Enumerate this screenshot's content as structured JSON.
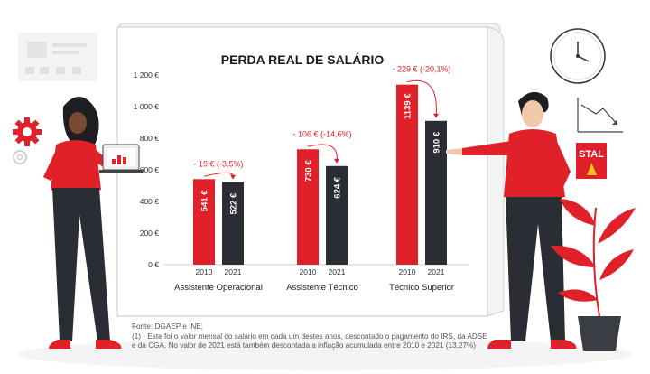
{
  "chart_data": {
    "type": "bar",
    "title": "PERDA REAL DE SALÁRIO",
    "yticks": [
      "0 €",
      "200 €",
      "400 €",
      "600 €",
      "800 €",
      "1 000 €",
      "1 200 €"
    ],
    "ylim": [
      0,
      1200
    ],
    "groups": [
      {
        "category": "Assistente Operacional",
        "years": [
          "2010",
          "2021"
        ],
        "values": [
          541,
          522
        ],
        "labels": [
          "541 €",
          "522 €"
        ],
        "delta": "- 19 € (-3,5%)"
      },
      {
        "category": "Assistente Técnico",
        "years": [
          "2010",
          "2021"
        ],
        "values": [
          730,
          624
        ],
        "labels": [
          "730 €",
          "624 €"
        ],
        "delta": "- 106 € (-14,6%)"
      },
      {
        "category": "Técnico Superior",
        "years": [
          "2010",
          "2021"
        ],
        "values": [
          1139,
          910
        ],
        "labels": [
          "1139 €",
          "910 €"
        ],
        "delta": "- 229 € (-20,1%)"
      }
    ],
    "colors": {
      "2010": "#e0212a",
      "2021": "#2a2d33",
      "delta": "#e0212a"
    },
    "grid": false,
    "legend": "none"
  },
  "source": {
    "line1": "Fonte: DGAEP e INE;",
    "line2": "(1) - Este foi o valor mensal do salário em cada um destes anos, descontado o pagamento do IRS, da ADSE",
    "line3": "e da CGA. No valor de 2021 está também descontada a inflação acumulada entre 2010 e 2021 (13,27%)"
  },
  "logo": {
    "text": "STAL"
  }
}
